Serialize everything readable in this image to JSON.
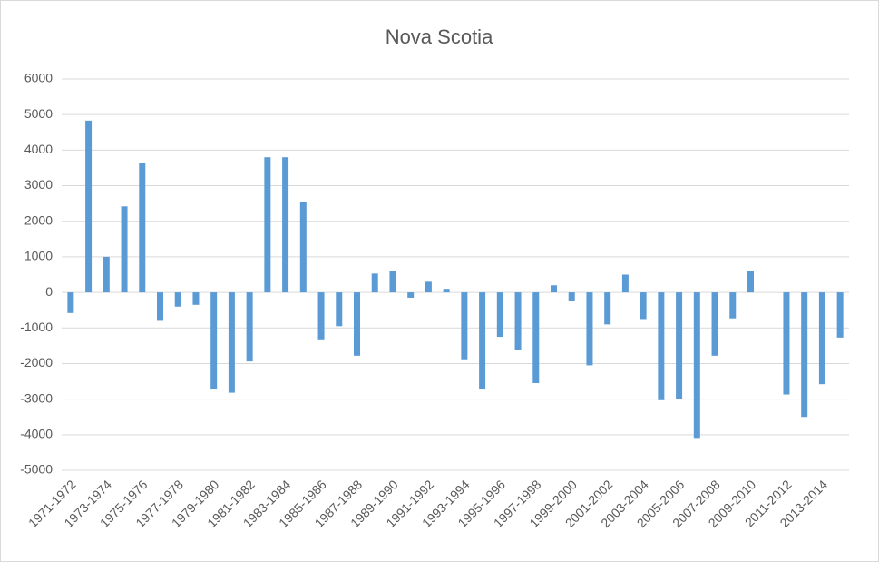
{
  "chart_data": {
    "type": "bar",
    "title": "Nova Scotia",
    "categories": [
      "1971-1972",
      null,
      "1973-1974",
      null,
      "1975-1976",
      null,
      "1977-1978",
      null,
      "1979-1980",
      null,
      "1981-1982",
      null,
      "1983-1984",
      null,
      "1985-1986",
      null,
      "1987-1988",
      null,
      "1989-1990",
      null,
      "1991-1992",
      null,
      "1993-1994",
      null,
      "1995-1996",
      null,
      "1997-1998",
      null,
      "1999-2000",
      null,
      "2001-2002",
      null,
      "2003-2004",
      null,
      "2005-2006",
      null,
      "2007-2008",
      null,
      "2009-2010",
      null,
      "2011-2012",
      null,
      "2013-2014",
      null
    ],
    "values": [
      -580,
      4830,
      1000,
      2420,
      3640,
      -800,
      -400,
      -350,
      -2730,
      -2820,
      -1940,
      3800,
      3800,
      2550,
      -1320,
      -950,
      -1780,
      530,
      600,
      -150,
      300,
      100,
      -1880,
      -2730,
      -1250,
      -1620,
      -2550,
      200,
      -230,
      -2050,
      -900,
      500,
      -750,
      -3030,
      -3000,
      -4090,
      -1780,
      -730,
      600,
      0,
      -2870,
      -3500,
      -2580,
      -1270
    ],
    "color": "#5b9bd5",
    "ylim": [
      -5000,
      6000
    ],
    "yticks": [
      -5000,
      -4000,
      -3000,
      -2000,
      -1000,
      0,
      1000,
      2000,
      3000,
      4000,
      5000,
      6000
    ],
    "grid": true
  }
}
